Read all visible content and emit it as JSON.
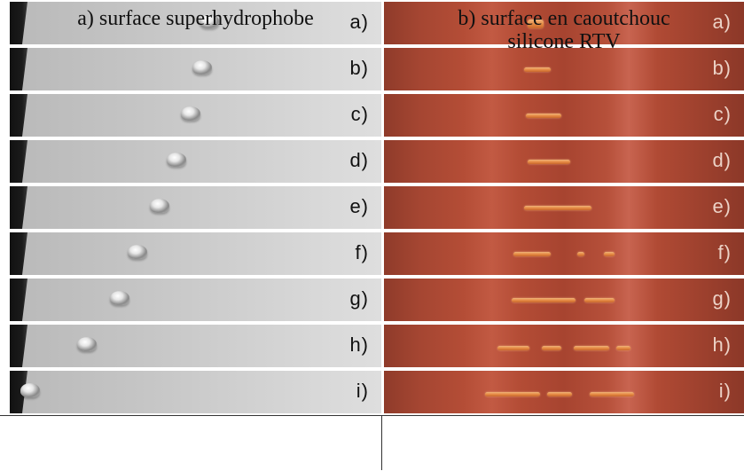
{
  "strip_labels": [
    "a)",
    "b)",
    "c)",
    "d)",
    "e)",
    "f)",
    "g)",
    "h)",
    "i)"
  ],
  "captions": {
    "left": "a) surface superhydrophobe",
    "right_line1": "b) surface en caoutchouc",
    "right_line2": "silicone RTV"
  },
  "colors": {
    "superhydrophobe_surface": "#c9c9c9",
    "rtv_surface": "#b04a34",
    "trail": "#e68c45"
  }
}
